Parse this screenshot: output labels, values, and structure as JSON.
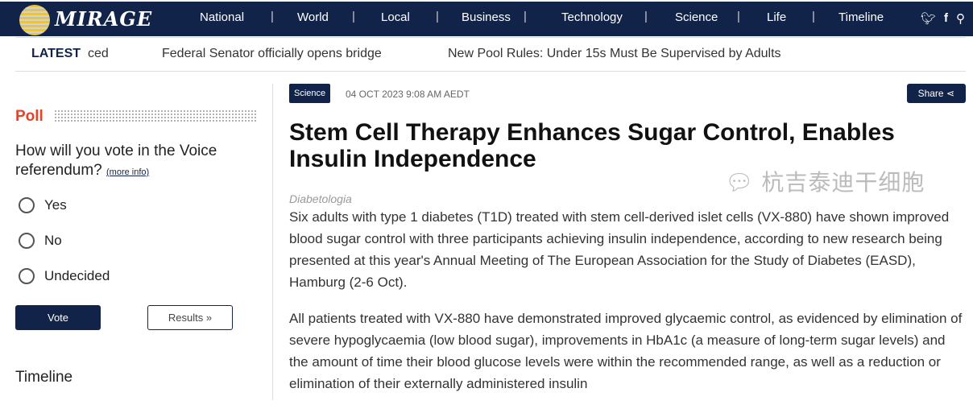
{
  "nav": {
    "brand": "MIRAGE",
    "items": [
      "National",
      "World",
      "Local",
      "Business",
      "Technology",
      "Science",
      "Life",
      "Timeline"
    ]
  },
  "latest": {
    "label": "LATEST",
    "items": [
      "ced",
      "Federal Senator officially opens bridge",
      "New Pool Rules: Under 15s Must Be Supervised by Adults"
    ]
  },
  "poll": {
    "title": "Poll",
    "question": "How will you vote in the Voice referendum?",
    "more_info": "(more info)",
    "options": [
      "Yes",
      "No",
      "Undecided"
    ],
    "vote": "Vote",
    "results": "Results »"
  },
  "sidebar": {
    "timeline": "Timeline"
  },
  "article": {
    "category": "Science",
    "date": "04 OCT 2023 9:08 AM AEDT",
    "share": "Share",
    "title": "Stem Cell Therapy Enhances Sugar Control, Enables Insulin Independence",
    "source": "Diabetologia",
    "paragraphs": [
      "Six adults with type 1 diabetes (T1D) treated with stem cell-derived islet cells (VX-880) have shown improved blood sugar control with three participants achieving insulin independence, according to new research being presented at this year's Annual Meeting of The European Association for the Study of Diabetes (EASD), Hamburg (2-6 Oct).",
      "All patients treated with VX-880 have demonstrated improved glycaemic control, as evidenced by elimination of severe hypoglycaemia (low blood sugar), improvements in HbA1c (a measure of long-term sugar levels) and the amount of time their blood glucose levels were within the recommended range, as well as a reduction or elimination of their externally administered insulin"
    ]
  },
  "watermark": "杭吉泰迪干细胞"
}
